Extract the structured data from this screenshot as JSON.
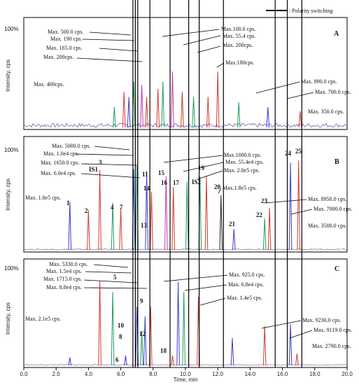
{
  "chart_data": {
    "type": "line",
    "legend": {
      "label": ": Polarity switching",
      "placement": "top-right"
    },
    "xlabel": "Time, min",
    "ylabel": "Intensity, cps",
    "xlim": [
      0,
      20
    ],
    "x_ticks": [
      "0.0",
      "2.0",
      "4.0",
      "6.0",
      "8.0",
      "10.0",
      "12.0",
      "14.0",
      "16.0",
      "18.0",
      "20.0"
    ],
    "polarity_switch_times": [
      6.75,
      6.9,
      7.05,
      7.8,
      9.05,
      10.2,
      10.85,
      12.35,
      15.55,
      16.3,
      17.2
    ],
    "colors": {
      "blue": "#3a3ad0",
      "red": "#d23a2a",
      "green": "#1f9e5a",
      "magenta": "#c03ab0",
      "black": "#222222"
    },
    "panels": [
      {
        "id": "A",
        "percent_label": "100%",
        "max_labels": [
          "Max. 500.0 cps.",
          "Max. 190 cps.",
          "Max. 165.0 cps.",
          "Max. 200cps.",
          "Max. 400cps.",
          "Max.100.0 cps.",
          "Max. 55.4 cps.",
          "Max. 200cps.",
          "Max.180cps.",
          "Max. 890.0 cps.",
          "Max. 700.0 cps.",
          "Max. 350.0 cps."
        ],
        "peaks": [
          {
            "t": 5.6,
            "h": 0.2,
            "c": "green"
          },
          {
            "t": 6.2,
            "h": 0.35,
            "c": "red"
          },
          {
            "t": 6.5,
            "h": 0.3,
            "c": "blue"
          },
          {
            "t": 6.8,
            "h": 0.45,
            "c": "green"
          },
          {
            "t": 7.3,
            "h": 0.42,
            "c": "magenta"
          },
          {
            "t": 7.6,
            "h": 0.3,
            "c": "red"
          },
          {
            "t": 8.3,
            "h": 0.38,
            "c": "red"
          },
          {
            "t": 8.6,
            "h": 0.45,
            "c": "green"
          },
          {
            "t": 9.2,
            "h": 0.55,
            "c": "magenta"
          },
          {
            "t": 9.8,
            "h": 0.35,
            "c": "red"
          },
          {
            "t": 10.5,
            "h": 0.3,
            "c": "green"
          },
          {
            "t": 11.4,
            "h": 0.3,
            "c": "red"
          },
          {
            "t": 12.0,
            "h": 0.55,
            "c": "red"
          },
          {
            "t": 13.3,
            "h": 0.25,
            "c": "green"
          },
          {
            "t": 15.1,
            "h": 0.2,
            "c": "blue"
          },
          {
            "t": 17.1,
            "h": 0.16,
            "c": "red"
          }
        ]
      },
      {
        "id": "B",
        "percent_label": "100%",
        "max_labels": [
          "Max. 5000.0 cps.",
          "Max. 1.0e4 cps.",
          "Max. 1650.0 cps.",
          "Max. 6.0e4 cps.",
          "Max. 1.8e5 cps.",
          "Max.1000.0 cps.",
          "Max. 55.4e4 cps.",
          "Max. 2.0e5 cps.",
          "Max.1.8e5 cps.",
          "Max. 8950.0 cps.",
          "Max. 7000.0 cps.",
          "Max. 3500.0 cps."
        ],
        "peak_labels": [
          "1",
          "2",
          "3",
          "IS1",
          "4",
          "7",
          "11",
          "15",
          "16",
          "14",
          "13",
          "17",
          "IS2",
          "19",
          "20",
          "21",
          "22",
          "23",
          "24",
          "25"
        ],
        "peaks": [
          {
            "t": 2.85,
            "h": 0.46,
            "c": "blue"
          },
          {
            "t": 4.0,
            "h": 0.38,
            "c": "red"
          },
          {
            "t": 4.7,
            "h": 0.76,
            "c": "red"
          },
          {
            "t": 5.5,
            "h": 0.45,
            "c": "green"
          },
          {
            "t": 6.0,
            "h": 0.4,
            "c": "red"
          },
          {
            "t": 6.8,
            "h": 0.77,
            "c": "blue"
          },
          {
            "t": 7.0,
            "h": 0.8,
            "c": "green"
          },
          {
            "t": 7.6,
            "h": 0.75,
            "c": "blue"
          },
          {
            "t": 7.9,
            "h": 0.55,
            "c": "red"
          },
          {
            "t": 8.8,
            "h": 0.7,
            "c": "magenta"
          },
          {
            "t": 9.25,
            "h": 0.6,
            "c": "red"
          },
          {
            "t": 10.1,
            "h": 0.65,
            "c": "green"
          },
          {
            "t": 10.9,
            "h": 0.7,
            "c": "green"
          },
          {
            "t": 11.3,
            "h": 0.7,
            "c": "red"
          },
          {
            "t": 12.2,
            "h": 0.52,
            "c": "black"
          },
          {
            "t": 13.0,
            "h": 0.2,
            "c": "blue"
          },
          {
            "t": 14.9,
            "h": 0.3,
            "c": "green"
          },
          {
            "t": 15.2,
            "h": 0.4,
            "c": "red"
          },
          {
            "t": 16.5,
            "h": 0.83,
            "c": "blue"
          },
          {
            "t": 17.0,
            "h": 0.85,
            "c": "red"
          }
        ]
      },
      {
        "id": "C",
        "percent_label": "100%",
        "max_labels": [
          "Max. 5330.0 cps.",
          "Max. 1.5e4 cps.",
          "Max. 1715.0 cps.",
          "Max. 8.8e4 cps.",
          "Max. 2.1e5 cps.",
          "Max. 925.0 cps.",
          "Max. 6.8e4 cps.",
          "Max. 1.4e5 cps.",
          "Max. 9230.0 cps.",
          "Max. 9119.0 cps.",
          "Max. 2790.0 cps."
        ],
        "peak_labels": [
          "5",
          "9",
          "10",
          "12",
          "8",
          "6",
          "18"
        ],
        "peaks": [
          {
            "t": 2.85,
            "h": 0.08,
            "c": "blue"
          },
          {
            "t": 4.7,
            "h": 0.86,
            "c": "red"
          },
          {
            "t": 5.5,
            "h": 0.75,
            "c": "green"
          },
          {
            "t": 6.3,
            "h": 0.1,
            "c": "blue"
          },
          {
            "t": 7.0,
            "h": 0.6,
            "c": "blue"
          },
          {
            "t": 7.3,
            "h": 0.35,
            "c": "green"
          },
          {
            "t": 7.5,
            "h": 0.5,
            "c": "blue"
          },
          {
            "t": 7.85,
            "h": 0.6,
            "c": "red"
          },
          {
            "t": 9.2,
            "h": 0.1,
            "c": "red"
          },
          {
            "t": 9.55,
            "h": 0.85,
            "c": "blue"
          },
          {
            "t": 9.9,
            "h": 0.75,
            "c": "green"
          },
          {
            "t": 10.8,
            "h": 0.7,
            "c": "red"
          },
          {
            "t": 12.9,
            "h": 0.28,
            "c": "blue"
          },
          {
            "t": 14.9,
            "h": 0.4,
            "c": "red"
          },
          {
            "t": 16.5,
            "h": 0.42,
            "c": "blue"
          },
          {
            "t": 16.9,
            "h": 0.12,
            "c": "red"
          }
        ]
      }
    ]
  }
}
